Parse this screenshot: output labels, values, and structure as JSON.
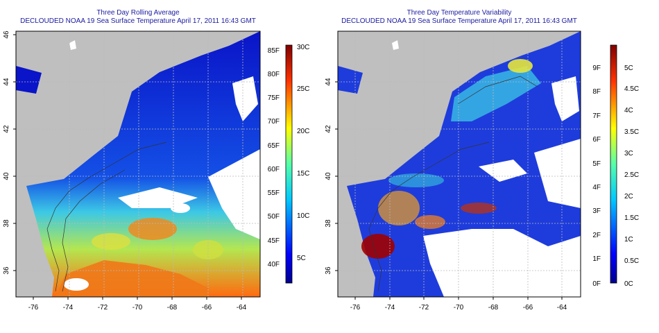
{
  "colors": {
    "title": "#1a1aa0",
    "land": "#bfbfbf",
    "deep_blue": "#00008b",
    "grid": "#bbbbbb"
  },
  "panels": [
    {
      "id": "left",
      "title": "Three Day Rolling Average",
      "subtitle": "DECLOUDED NOAA 19 Sea Surface Temperature April 17, 2011 16:43 GMT",
      "x_ticks": [
        "-76",
        "-74",
        "-72",
        "-70",
        "-68",
        "-66",
        "-64"
      ],
      "y_ticks": [
        "36",
        "38",
        "40",
        "42",
        "44",
        "46"
      ],
      "colorbar": {
        "palette": "jet",
        "f_labels": [
          "85F",
          "80F",
          "75F",
          "70F",
          "65F",
          "60F",
          "55F",
          "50F",
          "45F",
          "40F"
        ],
        "c_labels": [
          "30C",
          "25C",
          "20C",
          "15C",
          "10C",
          "5C"
        ]
      }
    },
    {
      "id": "right",
      "title": "Three Day Temperature Variability",
      "subtitle": "DECLOUDED NOAA 19 Sea Surface Temperature April 17, 2011 16:43 GMT",
      "x_ticks": [
        "-76",
        "-74",
        "-72",
        "-70",
        "-68",
        "-66",
        "-64"
      ],
      "y_ticks": [
        "36",
        "38",
        "40",
        "42",
        "44"
      ],
      "colorbar": {
        "palette": "jet",
        "f_labels": [
          "9F",
          "8F",
          "7F",
          "6F",
          "5F",
          "4F",
          "3F",
          "2F",
          "1F",
          "0F"
        ],
        "c_labels": [
          "5C",
          "4.5C",
          "4C",
          "3.5C",
          "3C",
          "2.5C",
          "2C",
          "1.5C",
          "1C",
          "0.5C",
          "0C"
        ]
      }
    }
  ]
}
